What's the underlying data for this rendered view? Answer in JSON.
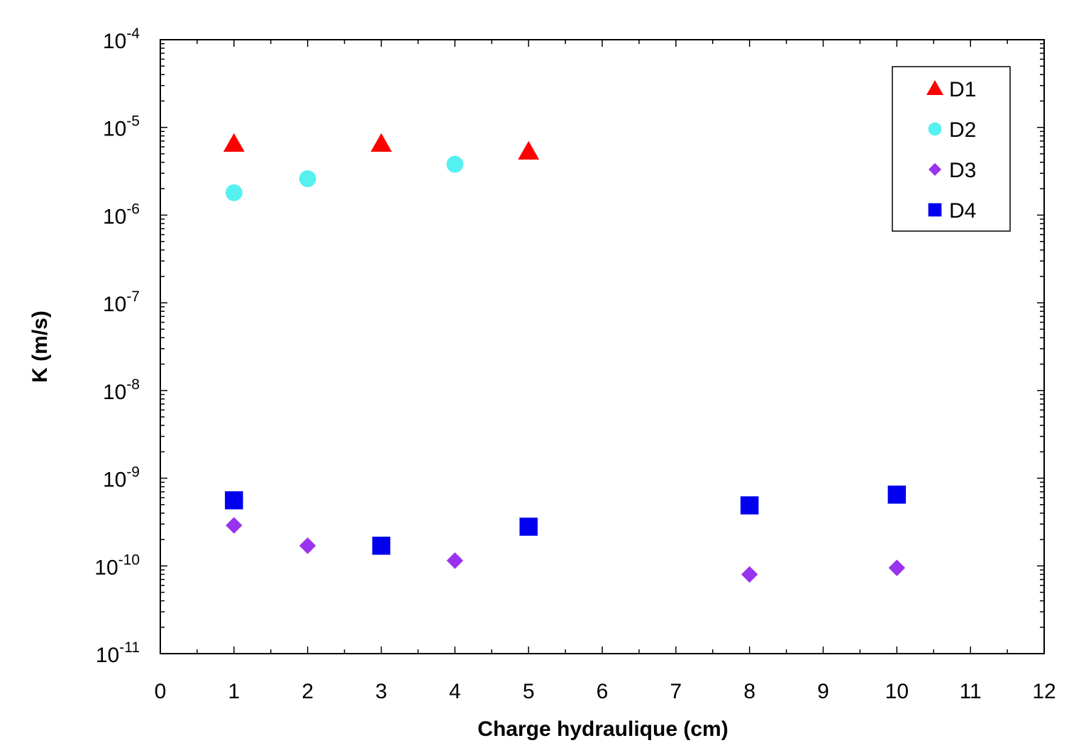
{
  "chart_data": {
    "type": "scatter",
    "xlabel": "Charge hydraulique (cm)",
    "ylabel": "K (m/s)",
    "xlim": [
      0,
      12
    ],
    "ylim": [
      1e-11,
      0.0001
    ],
    "yscale": "log",
    "x_ticks": [
      "0",
      "1",
      "2",
      "3",
      "4",
      "5",
      "6",
      "7",
      "8",
      "9",
      "10",
      "11",
      "12"
    ],
    "y_ticks": [
      {
        "base": "10",
        "exp": "-11"
      },
      {
        "base": "10",
        "exp": "-10"
      },
      {
        "base": "10",
        "exp": "-9"
      },
      {
        "base": "10",
        "exp": "-8"
      },
      {
        "base": "10",
        "exp": "-7"
      },
      {
        "base": "10",
        "exp": "-6"
      },
      {
        "base": "10",
        "exp": "-5"
      },
      {
        "base": "10",
        "exp": "-4"
      }
    ],
    "grid": false,
    "legend_position": "top-right",
    "series": [
      {
        "name": "D1",
        "marker": "triangle",
        "color": "#ff0000",
        "points": [
          [
            1,
            6.5e-06
          ],
          [
            3,
            6.5e-06
          ],
          [
            5,
            5.3e-06
          ]
        ]
      },
      {
        "name": "D2",
        "marker": "circle",
        "color": "#55f0f0",
        "points": [
          [
            1,
            1.8e-06
          ],
          [
            2,
            2.6e-06
          ],
          [
            4,
            3.8e-06
          ]
        ]
      },
      {
        "name": "D3",
        "marker": "diamond",
        "color": "#9933ee",
        "points": [
          [
            1,
            2.9e-10
          ],
          [
            2,
            1.7e-10
          ],
          [
            4,
            1.15e-10
          ],
          [
            8,
            8e-11
          ],
          [
            10,
            9.5e-11
          ]
        ]
      },
      {
        "name": "D4",
        "marker": "square",
        "color": "#0000ee",
        "points": [
          [
            1,
            5.6e-10
          ],
          [
            3,
            1.7e-10
          ],
          [
            5,
            2.8e-10
          ],
          [
            8,
            4.9e-10
          ],
          [
            10,
            6.5e-10
          ]
        ]
      }
    ]
  }
}
